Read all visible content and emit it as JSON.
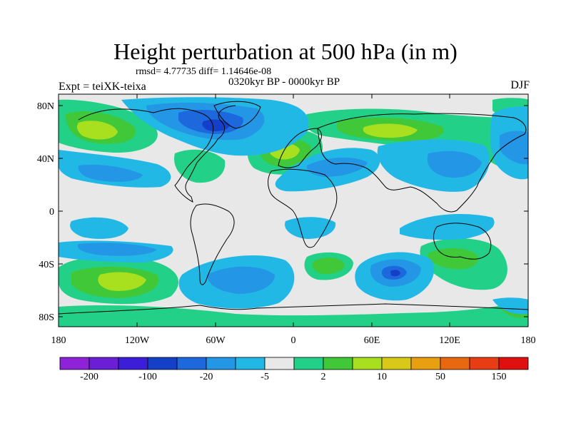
{
  "title": "Height perturbation at 500 hPa (in m)",
  "stats": "rmsd= 4.77735  diff= 1.14646e-08",
  "period": "0320kyr BP - 0000kyr BP",
  "experiment": "Expt = teiXK-teixa",
  "season": "DJF",
  "axes": {
    "lat_ticks": [
      "80N",
      "40N",
      "0",
      "40S",
      "80S"
    ],
    "lon_ticks": [
      "180",
      "120W",
      "60W",
      "0",
      "60E",
      "120E",
      "180"
    ]
  },
  "colorbar": {
    "colors": [
      "#8e22d8",
      "#6a1ed6",
      "#3d1ed8",
      "#1440c8",
      "#1c68dc",
      "#2496e6",
      "#22b8e6",
      "#e8e8e8",
      "#22d088",
      "#40c838",
      "#a8e020",
      "#d8c818",
      "#e8a010",
      "#e86810",
      "#e83c14",
      "#e01010"
    ],
    "labels": [
      "-200",
      "-100",
      "-20",
      "-5",
      "2",
      "10",
      "50",
      "150"
    ]
  }
}
